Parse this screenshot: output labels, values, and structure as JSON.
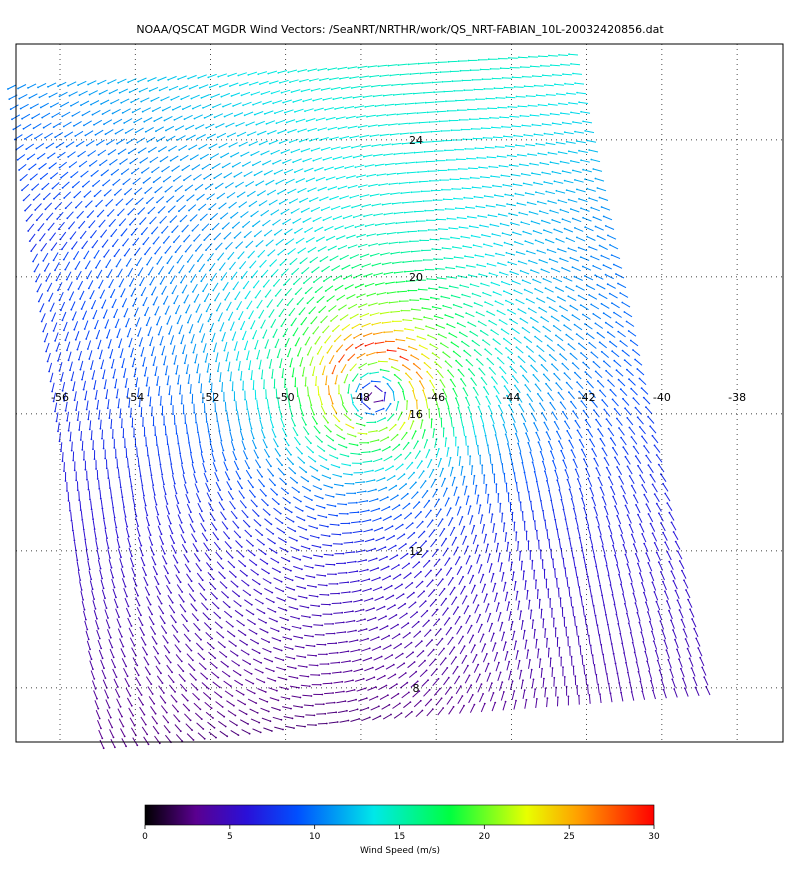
{
  "title": "NOAA/QSCAT MGDR Wind Vectors: /SeaNRT/NRTHR/work/QS_NRT-FABIAN_10L-20032420856.dat",
  "map": {
    "lonlim": [
      -57.17,
      -36.78
    ],
    "latlim": [
      6.42,
      26.8
    ],
    "lon_labels": [
      -56,
      -54,
      -52,
      -50,
      -48,
      -46,
      -44,
      -42,
      -40,
      -38
    ],
    "lat_labels": [
      24,
      20,
      16,
      12,
      8
    ]
  },
  "colorbar": {
    "range": [
      0,
      30
    ],
    "ticks": [
      0,
      5,
      10,
      15,
      20,
      25,
      30
    ],
    "label": "Wind Speed (m/s)"
  }
}
